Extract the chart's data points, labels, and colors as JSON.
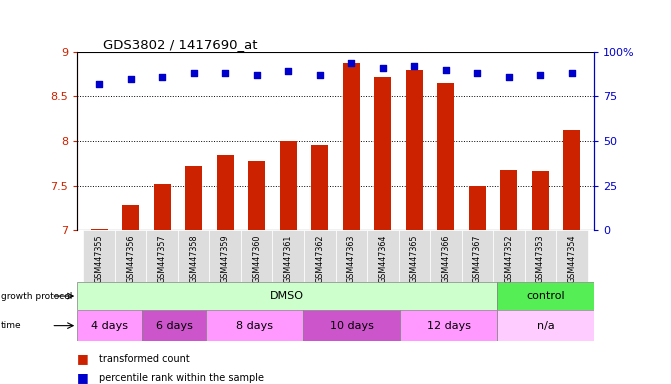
{
  "title": "GDS3802 / 1417690_at",
  "samples": [
    "GSM447355",
    "GSM447356",
    "GSM447357",
    "GSM447358",
    "GSM447359",
    "GSM447360",
    "GSM447361",
    "GSM447362",
    "GSM447363",
    "GSM447364",
    "GSM447365",
    "GSM447366",
    "GSM447367",
    "GSM447352",
    "GSM447353",
    "GSM447354"
  ],
  "transformed_count": [
    7.02,
    7.28,
    7.52,
    7.72,
    7.85,
    7.78,
    8.0,
    7.96,
    8.87,
    8.72,
    8.8,
    8.65,
    7.5,
    7.68,
    7.67,
    8.12
  ],
  "percentile_rank": [
    82,
    85,
    86,
    88,
    88,
    87,
    89,
    87,
    94,
    91,
    92,
    90,
    88,
    86,
    87,
    88
  ],
  "ylim_left": [
    7,
    9
  ],
  "ylim_right": [
    0,
    100
  ],
  "yticks_left": [
    7,
    7.5,
    8,
    8.5,
    9
  ],
  "yticks_right": [
    0,
    25,
    50,
    75,
    100
  ],
  "bar_color": "#cc2200",
  "dot_color": "#0000cc",
  "bar_width": 0.55,
  "growth_protocol_groups": [
    {
      "label": "DMSO",
      "start": 0,
      "end": 13,
      "color": "#ccffcc"
    },
    {
      "label": "control",
      "start": 13,
      "end": 16,
      "color": "#55ee55"
    }
  ],
  "time_groups": [
    {
      "label": "4 days",
      "start": 0,
      "end": 2,
      "color": "#ff99ff"
    },
    {
      "label": "6 days",
      "start": 2,
      "end": 4,
      "color": "#cc55cc"
    },
    {
      "label": "8 days",
      "start": 4,
      "end": 7,
      "color": "#ff99ff"
    },
    {
      "label": "10 days",
      "start": 7,
      "end": 10,
      "color": "#cc55cc"
    },
    {
      "label": "12 days",
      "start": 10,
      "end": 13,
      "color": "#ff99ff"
    },
    {
      "label": "n/a",
      "start": 13,
      "end": 16,
      "color": "#ffccff"
    }
  ],
  "fig_bg": "#ffffff",
  "label_color_red": "#cc2200",
  "label_color_blue": "#0000cc",
  "xtick_bg": "#dddddd"
}
